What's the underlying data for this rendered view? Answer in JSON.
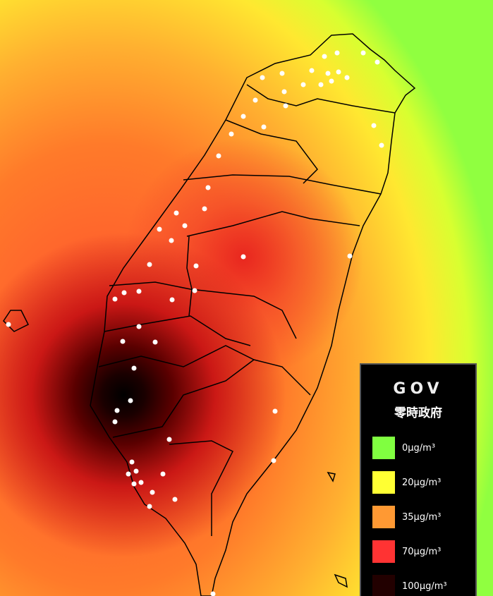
{
  "logo": {
    "text": "GOV",
    "subtitle": "零時政府"
  },
  "legend": {
    "items": [
      {
        "label": "0μg/m³",
        "color": "#80ff40"
      },
      {
        "label": "20μg/m³",
        "color": "#ffff33"
      },
      {
        "label": "35μg/m³",
        "color": "#ff9933"
      },
      {
        "label": "70μg/m³",
        "color": "#ff3333"
      },
      {
        "label": "100μg/m³",
        "color": "#220000"
      }
    ]
  }
}
